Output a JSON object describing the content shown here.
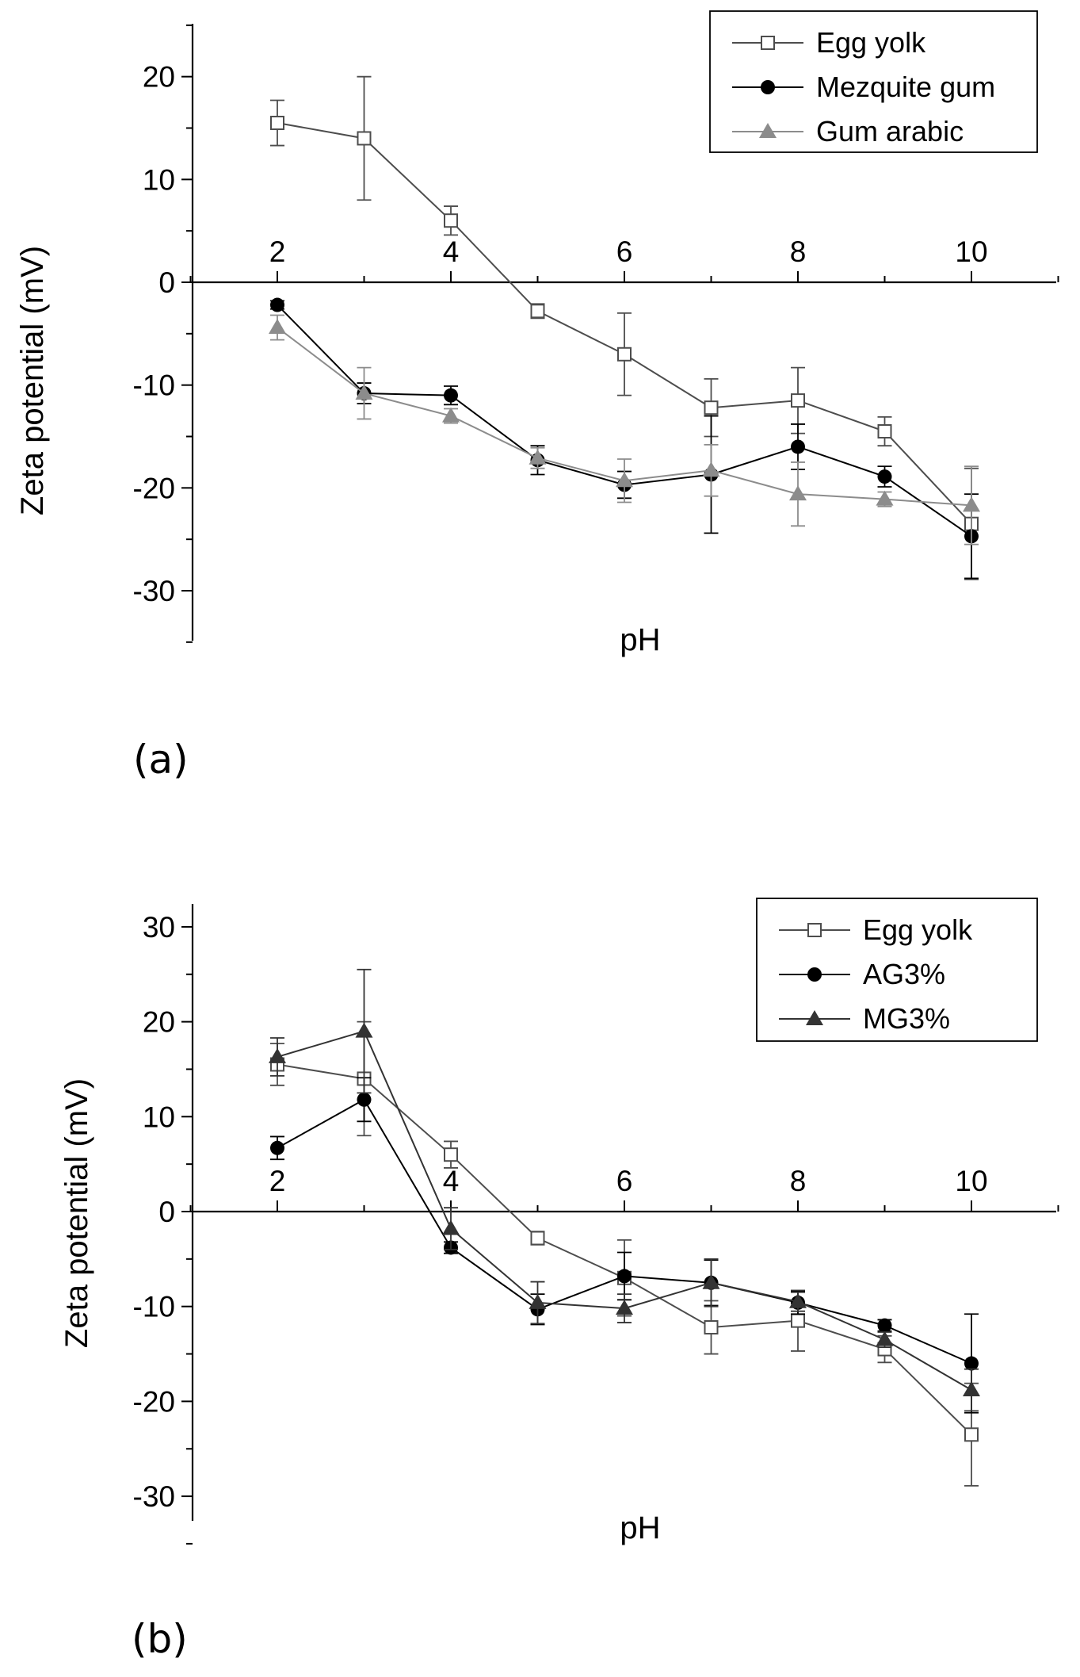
{
  "chart_data": [
    {
      "type": "line",
      "panel_label": "(a)",
      "xlabel": "pH",
      "ylabel": "Zeta potential (mV)",
      "xlim": [
        0.9,
        11.3
      ],
      "ylim": [
        -35,
        25
      ],
      "xticks": [
        2,
        4,
        6,
        8,
        10
      ],
      "yticks": [
        -30,
        -20,
        -10,
        0,
        10,
        20
      ],
      "grid": false,
      "legend_position": "top-right",
      "series": [
        {
          "name": "Egg yolk",
          "marker": "open-square",
          "color": "#4d4d4d",
          "x": [
            2,
            3,
            4,
            5,
            6,
            7,
            8,
            9,
            10
          ],
          "y": [
            15.5,
            14,
            6,
            -2.8,
            -7,
            -12.2,
            -11.5,
            -14.5,
            -23.5
          ],
          "err": [
            2.2,
            6,
            1.4,
            0.7,
            4,
            2.8,
            3.2,
            1.4,
            5.4
          ]
        },
        {
          "name": "Mezquite gum",
          "marker": "filled-circle",
          "color": "#000000",
          "x": [
            2,
            3,
            4,
            5,
            6,
            7,
            8,
            9,
            10
          ],
          "y": [
            -2.2,
            -10.8,
            -11,
            -17.3,
            -19.7,
            -18.7,
            -16,
            -18.9,
            -24.7
          ],
          "err": [
            0.4,
            1,
            0.9,
            1.4,
            1.3,
            5.7,
            2.2,
            1,
            4.1
          ]
        },
        {
          "name": "Gum arabic",
          "marker": "filled-triangle",
          "color": "#8c8c8c",
          "x": [
            2,
            3,
            4,
            5,
            6,
            7,
            8,
            9,
            10
          ],
          "y": [
            -4.4,
            -10.8,
            -13,
            -17.1,
            -19.3,
            -18.3,
            -20.6,
            -21.1,
            -21.7
          ],
          "err": [
            1.2,
            2.5,
            0.7,
            1,
            2.1,
            2.5,
            3.1,
            0.7,
            3.8
          ]
        }
      ]
    },
    {
      "type": "line",
      "panel_label": "(b)",
      "xlabel": "pH",
      "ylabel": "Zeta potential (mV)",
      "xlim": [
        0.9,
        11.3
      ],
      "ylim": [
        -35,
        30
      ],
      "xticks": [
        2,
        4,
        6,
        8,
        10
      ],
      "yticks": [
        -30,
        -20,
        -10,
        0,
        10,
        20,
        30
      ],
      "grid": false,
      "legend_position": "top-right",
      "series": [
        {
          "name": "Egg yolk",
          "marker": "open-square",
          "color": "#4d4d4d",
          "x": [
            2,
            3,
            4,
            5,
            6,
            7,
            8,
            9,
            10
          ],
          "y": [
            15.5,
            14,
            6,
            -2.8,
            -7,
            -12.2,
            -11.5,
            -14.5,
            -23.5
          ],
          "err": [
            2.2,
            6,
            1.4,
            0.7,
            4,
            2.8,
            3.2,
            1.4,
            5.4
          ]
        },
        {
          "name": "AG3%",
          "marker": "filled-circle",
          "color": "#000000",
          "x": [
            2,
            3,
            4,
            5,
            6,
            7,
            8,
            9,
            10
          ],
          "y": [
            6.7,
            11.8,
            -3.8,
            -10.3,
            -6.8,
            -7.5,
            -9.6,
            -12,
            -16
          ],
          "err": [
            1.2,
            2.3,
            0.6,
            1.6,
            2.5,
            2.4,
            1.2,
            0.6,
            5.2
          ]
        },
        {
          "name": "MG3%",
          "marker": "filled-triangle",
          "color": "#333333",
          "x": [
            2,
            3,
            4,
            5,
            6,
            7,
            8,
            9,
            10
          ],
          "y": [
            16.3,
            19,
            -1.8,
            -9.6,
            -10.2,
            -7.5,
            -9.5,
            -13.5,
            -18.8
          ],
          "err": [
            2,
            6.5,
            2.2,
            2.2,
            1.5,
            2.5,
            1,
            0.8,
            2.2
          ]
        }
      ]
    }
  ]
}
